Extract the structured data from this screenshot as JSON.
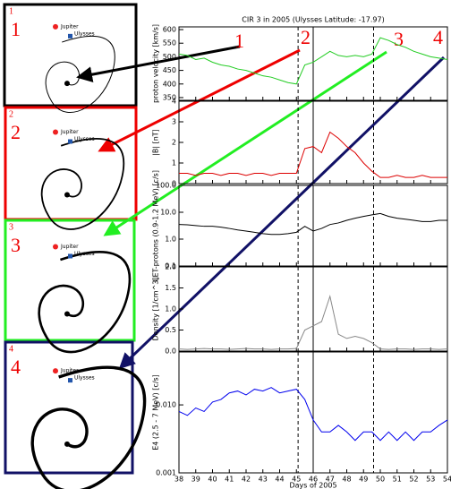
{
  "annotations": [
    "1",
    "2",
    "3",
    "4"
  ],
  "frames": [
    {
      "tag": "1",
      "number": "1",
      "jupiter": "Jupiter",
      "ulysses": "Ulysses"
    },
    {
      "tag": "2",
      "number": "2",
      "jupiter": "Jupiter",
      "ulysses": "Ulysses"
    },
    {
      "tag": "3",
      "number": "3",
      "jupiter": "Jupiter",
      "ulysses": "Ulysses"
    },
    {
      "tag": "4",
      "number": "4",
      "jupiter": "Jupiter",
      "ulysses": "Ulysses"
    }
  ],
  "chart_data": [
    {
      "type": "line",
      "title": "CIR 3 in 2005 (Ulysses Latitude: -17.97)",
      "ylabel": "proton velocity [km/s]",
      "x": [
        38,
        38.5,
        39,
        39.5,
        40,
        40.5,
        41,
        41.5,
        42,
        42.5,
        43,
        43.5,
        44,
        44.5,
        45,
        45.5,
        46,
        46.5,
        47,
        47.5,
        48,
        48.5,
        49,
        49.5,
        50,
        50.5,
        51,
        51.5,
        52,
        52.5,
        53,
        53.5,
        54
      ],
      "series": [
        {
          "color": "#22cc22",
          "values": [
            510,
            505,
            490,
            495,
            480,
            470,
            465,
            455,
            450,
            440,
            430,
            425,
            415,
            405,
            400,
            470,
            480,
            500,
            520,
            505,
            500,
            505,
            500,
            510,
            570,
            560,
            545,
            535,
            520,
            510,
            500,
            495,
            490
          ]
        }
      ],
      "ylim": [
        340,
        610
      ],
      "yticks": [
        350,
        400,
        450,
        500,
        550,
        600
      ],
      "vlines": [
        45.1,
        46.0,
        49.6
      ]
    },
    {
      "type": "line",
      "ylabel": "|B| [nT]",
      "x": [
        38,
        38.5,
        39,
        39.5,
        40,
        40.5,
        41,
        41.5,
        42,
        42.5,
        43,
        43.5,
        44,
        44.5,
        45,
        45.5,
        46,
        46.5,
        47,
        47.5,
        48,
        48.5,
        49,
        49.5,
        50,
        50.5,
        51,
        51.5,
        52,
        52.5,
        53,
        53.5,
        54
      ],
      "series": [
        {
          "color": "#dd0000",
          "values": [
            0.5,
            0.5,
            0.4,
            0.5,
            0.5,
            0.4,
            0.5,
            0.5,
            0.4,
            0.5,
            0.5,
            0.4,
            0.5,
            0.5,
            0.5,
            1.7,
            1.8,
            1.5,
            2.5,
            2.2,
            1.8,
            1.5,
            1.0,
            0.6,
            0.3,
            0.3,
            0.4,
            0.3,
            0.3,
            0.4,
            0.3,
            0.3,
            0.3
          ]
        }
      ],
      "ylim": [
        0,
        4
      ],
      "yticks": [
        0,
        1,
        2,
        3,
        4
      ],
      "vlines": [
        45.1,
        46.0,
        49.6
      ]
    },
    {
      "type": "line",
      "ylabel": "LET-protons (0.9-1.2 MeV) [c/s]",
      "log": true,
      "x": [
        38,
        38.5,
        39,
        39.5,
        40,
        40.5,
        41,
        41.5,
        42,
        42.5,
        43,
        43.5,
        44,
        44.5,
        45,
        45.5,
        46,
        46.5,
        47,
        47.5,
        48,
        48.5,
        49,
        49.5,
        50,
        50.5,
        51,
        51.5,
        52,
        52.5,
        53,
        53.5,
        54
      ],
      "series": [
        {
          "color": "#000000",
          "values": [
            3.5,
            3.4,
            3.2,
            3,
            3,
            2.8,
            2.5,
            2.2,
            2,
            1.8,
            1.6,
            1.5,
            1.5,
            1.6,
            1.8,
            3,
            2,
            2.5,
            3.5,
            4,
            5,
            6,
            7,
            8,
            9,
            7,
            6,
            5.5,
            5,
            4.5,
            4.5,
            5,
            5
          ]
        }
      ],
      "ylim": [
        0.1,
        100
      ],
      "yticks": [
        {
          "value": 0.1,
          "label": "0.1"
        },
        {
          "value": 1,
          "label": "1.0"
        },
        {
          "value": 10,
          "label": "10.0"
        },
        {
          "value": 100,
          "label": "100.0"
        }
      ],
      "vlines": [
        45.1,
        46.0,
        49.6
      ]
    },
    {
      "type": "line",
      "ylabel": "Density [1/cm^3]",
      "x": [
        38,
        38.5,
        39,
        39.5,
        40,
        40.5,
        41,
        41.5,
        42,
        42.5,
        43,
        43.5,
        44,
        44.5,
        45,
        45.5,
        46,
        46.5,
        47,
        47.5,
        48,
        48.5,
        49,
        49.5,
        50,
        50.5,
        51,
        51.5,
        52,
        52.5,
        53,
        53.5,
        54
      ],
      "series": [
        {
          "color": "#888888",
          "values": [
            0.05,
            0.04,
            0.05,
            0.06,
            0.05,
            0.05,
            0.04,
            0.05,
            0.06,
            0.05,
            0.05,
            0.04,
            0.05,
            0.05,
            0.06,
            0.5,
            0.6,
            0.7,
            1.3,
            0.4,
            0.3,
            0.35,
            0.3,
            0.2,
            0.05,
            0.04,
            0.05,
            0.05,
            0.04,
            0.05,
            0.05,
            0.04,
            0.05
          ]
        }
      ],
      "ylim": [
        0,
        2
      ],
      "yticks": [
        {
          "value": 0,
          "label": "0.0"
        },
        {
          "value": 0.5,
          "label": "0.5"
        },
        {
          "value": 1,
          "label": "1.0"
        },
        {
          "value": 1.5,
          "label": "1.5"
        },
        {
          "value": 2,
          "label": "2.0"
        }
      ],
      "vlines": [
        45.1,
        46.0,
        49.6
      ]
    },
    {
      "type": "line",
      "ylabel": "E4 (2.5 - 7 MeV) [c/s]",
      "log": true,
      "xlabel": "Days of 2005",
      "x": [
        38,
        38.5,
        39,
        39.5,
        40,
        40.5,
        41,
        41.5,
        42,
        42.5,
        43,
        43.5,
        44,
        44.5,
        45,
        45.5,
        46,
        46.5,
        47,
        47.5,
        48,
        48.5,
        49,
        49.5,
        50,
        50.5,
        51,
        51.5,
        52,
        52.5,
        53,
        53.5,
        54
      ],
      "series": [
        {
          "color": "#0000ee",
          "values": [
            0.008,
            0.007,
            0.009,
            0.008,
            0.011,
            0.012,
            0.015,
            0.016,
            0.014,
            0.017,
            0.016,
            0.018,
            0.015,
            0.016,
            0.017,
            0.012,
            0.006,
            0.004,
            0.004,
            0.005,
            0.004,
            0.003,
            0.004,
            0.004,
            0.003,
            0.004,
            0.003,
            0.004,
            0.003,
            0.004,
            0.004,
            0.005,
            0.006
          ]
        }
      ],
      "ylim": [
        0.001,
        0.06
      ],
      "yticks": [
        {
          "value": 0.001,
          "label": "0.001"
        },
        {
          "value": 0.01,
          "label": "0.010"
        }
      ],
      "xlim": [
        38,
        54
      ],
      "xticks": [
        38,
        39,
        40,
        41,
        42,
        43,
        44,
        45,
        46,
        47,
        48,
        49,
        50,
        51,
        52,
        53,
        54
      ],
      "vlines": [
        45.1,
        46.0,
        49.6
      ]
    }
  ]
}
